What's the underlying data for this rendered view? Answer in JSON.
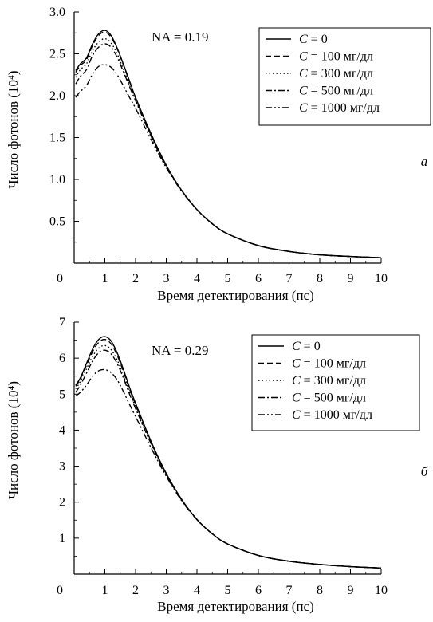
{
  "chart_data": [
    {
      "type": "line",
      "panel_label": "а",
      "annotation": "NA = 0.19",
      "xlabel": "Время детектирования (пс)",
      "ylabel": "Число фотонов (10⁴)",
      "xlim": [
        0,
        10
      ],
      "ylim": [
        0,
        3.0
      ],
      "x_ticks": [
        "0",
        "1",
        "2",
        "3",
        "4",
        "5",
        "6",
        "7",
        "8",
        "9",
        "10"
      ],
      "y_ticks": [
        "0.5",
        "1.0",
        "1.5",
        "2.0",
        "2.5",
        "3.0"
      ],
      "legend_position": "top-right",
      "grid": false,
      "x": [
        0.05,
        0.2,
        0.4,
        0.6,
        0.8,
        1.0,
        1.2,
        1.4,
        1.6,
        1.8,
        2.0,
        2.5,
        3.0,
        3.5,
        4.0,
        4.5,
        5.0,
        6.0,
        7.0,
        8.0,
        9.0,
        10.0
      ],
      "series": [
        {
          "name": "C = 0",
          "dash": "solid",
          "values": [
            2.3,
            2.38,
            2.45,
            2.62,
            2.74,
            2.78,
            2.72,
            2.57,
            2.38,
            2.18,
            1.98,
            1.55,
            1.17,
            0.87,
            0.64,
            0.47,
            0.35,
            0.21,
            0.14,
            0.1,
            0.08,
            0.065
          ]
        },
        {
          "name": "C = 100 мг/дл",
          "dash": "dash",
          "values": [
            2.28,
            2.36,
            2.43,
            2.6,
            2.72,
            2.76,
            2.7,
            2.56,
            2.37,
            2.17,
            1.97,
            1.54,
            1.16,
            0.87,
            0.64,
            0.47,
            0.35,
            0.21,
            0.14,
            0.1,
            0.08,
            0.065
          ]
        },
        {
          "name": "C = 300 мг/дл",
          "dash": "dot",
          "values": [
            2.22,
            2.31,
            2.38,
            2.54,
            2.64,
            2.68,
            2.63,
            2.5,
            2.32,
            2.13,
            1.95,
            1.53,
            1.16,
            0.87,
            0.64,
            0.47,
            0.35,
            0.21,
            0.14,
            0.1,
            0.08,
            0.065
          ]
        },
        {
          "name": "C = 500 мг/дл",
          "dash": "dashdot",
          "values": [
            2.14,
            2.23,
            2.31,
            2.48,
            2.58,
            2.62,
            2.58,
            2.46,
            2.29,
            2.11,
            1.94,
            1.52,
            1.15,
            0.87,
            0.64,
            0.47,
            0.35,
            0.21,
            0.14,
            0.1,
            0.08,
            0.065
          ]
        },
        {
          "name": "C = 1000 мг/дл",
          "dash": "dashdotdot",
          "values": [
            1.98,
            2.05,
            2.12,
            2.26,
            2.35,
            2.37,
            2.34,
            2.25,
            2.12,
            1.98,
            1.85,
            1.48,
            1.14,
            0.86,
            0.64,
            0.47,
            0.35,
            0.21,
            0.14,
            0.1,
            0.08,
            0.065
          ]
        }
      ]
    },
    {
      "type": "line",
      "panel_label": "б",
      "annotation": "NA = 0.29",
      "xlabel": "Время детектирования (пс)",
      "ylabel": "Число фотонов (10⁴)",
      "xlim": [
        0,
        10
      ],
      "ylim": [
        0,
        7
      ],
      "x_ticks": [
        "0",
        "1",
        "2",
        "3",
        "4",
        "5",
        "6",
        "7",
        "8",
        "9",
        "10"
      ],
      "y_ticks": [
        "1",
        "2",
        "3",
        "4",
        "5",
        "6",
        "7"
      ],
      "legend_position": "top-right",
      "grid": false,
      "x": [
        0.05,
        0.2,
        0.4,
        0.6,
        0.8,
        1.0,
        1.2,
        1.4,
        1.6,
        1.8,
        2.0,
        2.5,
        3.0,
        3.5,
        4.0,
        4.5,
        5.0,
        6.0,
        7.0,
        8.0,
        9.0,
        10.0
      ],
      "series": [
        {
          "name": "C = 0",
          "dash": "solid",
          "values": [
            5.25,
            5.45,
            5.85,
            6.25,
            6.52,
            6.6,
            6.48,
            6.15,
            5.7,
            5.2,
            4.75,
            3.7,
            2.8,
            2.08,
            1.52,
            1.12,
            0.84,
            0.52,
            0.36,
            0.27,
            0.21,
            0.17
          ]
        },
        {
          "name": "C = 100 мг/дл",
          "dash": "dash",
          "values": [
            5.22,
            5.42,
            5.8,
            6.18,
            6.44,
            6.52,
            6.4,
            6.08,
            5.64,
            5.15,
            4.71,
            3.68,
            2.79,
            2.07,
            1.52,
            1.12,
            0.84,
            0.52,
            0.36,
            0.27,
            0.21,
            0.17
          ]
        },
        {
          "name": "C = 300 мг/дл",
          "dash": "dot",
          "values": [
            5.15,
            5.35,
            5.7,
            6.05,
            6.28,
            6.35,
            6.24,
            5.95,
            5.54,
            5.07,
            4.65,
            3.66,
            2.78,
            2.07,
            1.52,
            1.12,
            0.84,
            0.52,
            0.36,
            0.27,
            0.21,
            0.17
          ]
        },
        {
          "name": "C = 500 мг/дл",
          "dash": "dashdot",
          "values": [
            5.05,
            5.25,
            5.58,
            5.92,
            6.15,
            6.22,
            6.12,
            5.85,
            5.46,
            5.01,
            4.6,
            3.63,
            2.77,
            2.06,
            1.52,
            1.12,
            0.84,
            0.52,
            0.36,
            0.27,
            0.21,
            0.17
          ]
        },
        {
          "name": "C = 1000 мг/дл",
          "dash": "dashdotdot",
          "values": [
            4.95,
            5.05,
            5.25,
            5.5,
            5.65,
            5.68,
            5.6,
            5.4,
            5.08,
            4.72,
            4.38,
            3.52,
            2.72,
            2.04,
            1.51,
            1.12,
            0.84,
            0.52,
            0.36,
            0.27,
            0.21,
            0.17
          ]
        }
      ]
    }
  ]
}
